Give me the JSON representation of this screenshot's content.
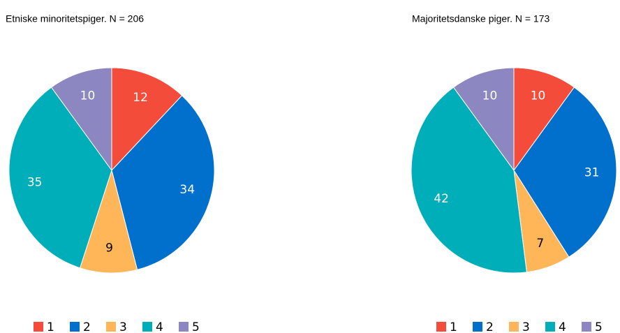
{
  "chart_data": [
    {
      "type": "pie",
      "title": "Etniske minoritetspiger. N = 206",
      "categories": [
        "1",
        "2",
        "3",
        "4",
        "5"
      ],
      "values": [
        12,
        34,
        9,
        35,
        10
      ],
      "colors": [
        "#f34c3b",
        "#0070cc",
        "#feb659",
        "#00aeb9",
        "#8c86c1"
      ],
      "legend": "bottom"
    },
    {
      "type": "pie",
      "title": "Majoritetsdanske piger. N = 173",
      "categories": [
        "1",
        "2",
        "3",
        "4",
        "5"
      ],
      "values": [
        10,
        31,
        7,
        42,
        10
      ],
      "colors": [
        "#f34c3b",
        "#0070cc",
        "#feb659",
        "#00aeb9",
        "#8c86c1"
      ],
      "legend": "bottom"
    }
  ]
}
